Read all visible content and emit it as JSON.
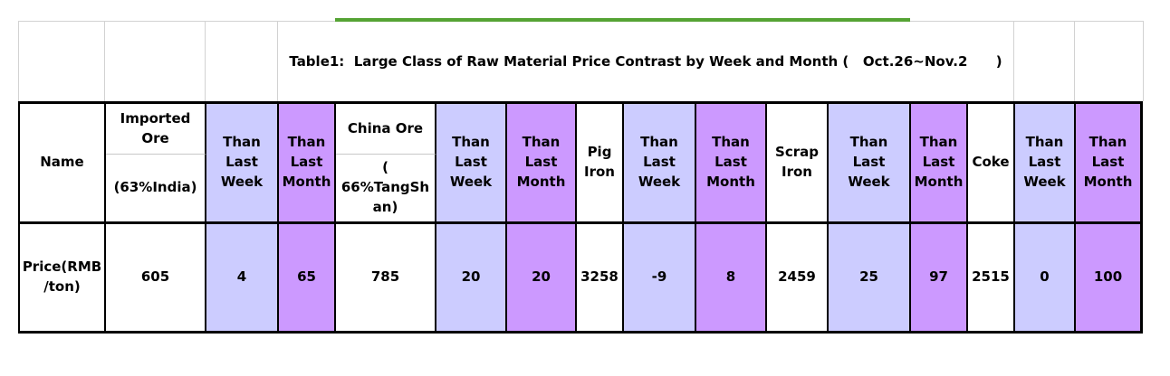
{
  "title": "Table1:  Large Class of Raw Material Price Contrast by Week and Month (   Oct.26~Nov.2      )",
  "period": "Oct.26~Nov.2",
  "colors": {
    "than_last_week_cell": "#ccccff",
    "than_last_month_cell": "#cc99ff",
    "green_rule": "#55a334",
    "gridline": "#d2d2d2",
    "table_border": "#000000"
  },
  "table": {
    "row_label": "Price(RMB\n/ton)",
    "columns": [
      {
        "id": "name",
        "header": "Name",
        "value": "Price(RMB\n/ton)"
      },
      {
        "id": "imported-ore",
        "header_top": "Imported\nOre",
        "header_bottom": "(63%India)",
        "value": "605"
      },
      {
        "id": "imported-ore-week",
        "header": "Than\nLast\nWeek",
        "value": "4"
      },
      {
        "id": "imported-ore-month",
        "header": "Than\nLast\nMonth",
        "value": "65"
      },
      {
        "id": "china-ore",
        "header_top": "China Ore",
        "header_bottom": "(\n66%TangSh\nan)",
        "value": "785"
      },
      {
        "id": "china-ore-week",
        "header": "Than\nLast\nWeek",
        "value": "20"
      },
      {
        "id": "china-ore-month",
        "header": "Than\nLast\nMonth",
        "value": "20"
      },
      {
        "id": "pig-iron",
        "header": "Pig\nIron",
        "value": "3258"
      },
      {
        "id": "pig-iron-week",
        "header": "Than\nLast\nWeek",
        "value": "-9"
      },
      {
        "id": "pig-iron-month",
        "header": "Than\nLast\nMonth",
        "value": "8"
      },
      {
        "id": "scrap-iron",
        "header": "Scrap\nIron",
        "value": "2459"
      },
      {
        "id": "scrap-iron-week",
        "header": "Than\nLast\nWeek",
        "value": "25"
      },
      {
        "id": "scrap-iron-month",
        "header": "Than\nLast\nMonth",
        "value": "97"
      },
      {
        "id": "coke",
        "header": "Coke",
        "value": "2515"
      },
      {
        "id": "coke-week",
        "header": "Than\nLast\nWeek",
        "value": "0"
      },
      {
        "id": "coke-month",
        "header": "Than\nLast\nMonth",
        "value": "100"
      }
    ]
  }
}
